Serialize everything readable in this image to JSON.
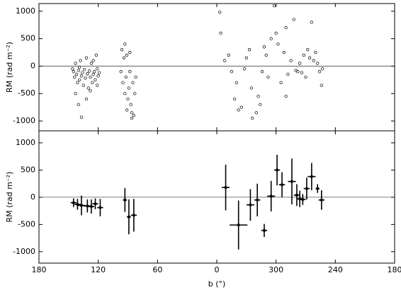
{
  "chart_data": [
    {
      "type": "scatter",
      "ylabel": "RM (rad m⁻²)",
      "color": "#000000",
      "xlim": [
        180,
        -180
      ],
      "ylim": [
        -1180,
        1140
      ],
      "yticks": [
        -1000,
        -500,
        0,
        500,
        1000
      ],
      "hline": 0,
      "x": [
        145,
        144,
        143,
        142,
        141,
        140,
        139,
        138,
        137,
        136,
        135,
        134,
        133,
        132,
        131,
        130,
        129,
        128,
        127,
        126,
        125,
        124,
        123,
        122,
        121,
        120,
        143,
        140,
        137,
        132,
        128,
        125,
        121,
        119,
        146,
        139,
        97,
        96,
        95,
        94,
        93,
        92,
        91,
        90,
        89,
        88,
        87,
        86,
        85,
        84,
        83,
        82,
        91,
        88,
        93,
        86,
        -3,
        -4,
        -8,
        -12,
        -15,
        -18,
        -20,
        -22,
        -25,
        -28,
        -30,
        -33,
        -35,
        -36,
        -40,
        -42,
        -44,
        -46,
        -48,
        -50,
        -52,
        -55,
        -58,
        -60,
        -62,
        -65,
        -68,
        -70,
        -72,
        -75,
        -78,
        -80,
        -82,
        -84,
        -86,
        -88,
        -90,
        -92,
        -94,
        -96,
        -98,
        -100,
        -102,
        -104,
        -106,
        -107,
        -70
      ],
      "values": [
        -100,
        -200,
        50,
        -150,
        -300,
        -80,
        -250,
        100,
        -180,
        -120,
        -350,
        -60,
        -220,
        150,
        -140,
        -400,
        -90,
        -200,
        50,
        -300,
        -150,
        -100,
        -250,
        200,
        -50,
        -180,
        -500,
        -700,
        -930,
        -600,
        -450,
        100,
        -350,
        -120,
        -50,
        -20,
        -100,
        300,
        -300,
        150,
        -500,
        -200,
        200,
        -600,
        -400,
        -100,
        -700,
        -850,
        -300,
        -900,
        -500,
        -200,
        -800,
        250,
        400,
        -950,
        980,
        600,
        100,
        200,
        -100,
        -600,
        -300,
        -800,
        -750,
        -50,
        150,
        300,
        -400,
        -950,
        -850,
        -550,
        -700,
        -100,
        350,
        200,
        -200,
        500,
        1100,
        600,
        400,
        -300,
        250,
        700,
        -150,
        100,
        850,
        -80,
        -100,
        50,
        -120,
        200,
        -200,
        300,
        150,
        800,
        100,
        250,
        50,
        -100,
        -350,
        -50,
        -550
      ]
    },
    {
      "type": "errorbar",
      "ylabel": "RM (rad m⁻²)",
      "xlabel": "b (°)",
      "color": "#000000",
      "xlim": [
        180,
        -180
      ],
      "ylim": [
        -1210,
        1220
      ],
      "yticks": [
        -1000,
        -500,
        0,
        500,
        1000
      ],
      "hline": 0,
      "xticks": [
        180,
        120,
        60,
        0,
        {
          "value": -60,
          "label": "300"
        },
        {
          "value": -120,
          "label": "240"
        },
        {
          "value": -180,
          "label": "180"
        }
      ],
      "x": [
        145,
        141,
        137,
        131,
        127,
        123,
        118,
        93,
        89,
        84,
        -9,
        -22,
        -34,
        -41,
        -48,
        -55,
        -61,
        -66,
        -76,
        -81,
        -84,
        -87,
        -91,
        -96,
        -102,
        -106
      ],
      "xerr": [
        3,
        3,
        4,
        4,
        3,
        3,
        3,
        2,
        2,
        3,
        4,
        9,
        4,
        3,
        3,
        4,
        3,
        3,
        4,
        3,
        3,
        3,
        3,
        4,
        2,
        3
      ],
      "values": [
        -100,
        -130,
        -150,
        -160,
        -170,
        -120,
        -190,
        -50,
        -360,
        -330,
        180,
        -510,
        -140,
        -50,
        -610,
        20,
        500,
        230,
        290,
        40,
        -30,
        -40,
        160,
        380,
        160,
        -50
      ],
      "yerr": [
        80,
        100,
        180,
        120,
        130,
        100,
        160,
        220,
        320,
        300,
        420,
        450,
        290,
        300,
        120,
        280,
        280,
        230,
        420,
        200,
        150,
        100,
        200,
        250,
        80,
        180
      ]
    }
  ]
}
